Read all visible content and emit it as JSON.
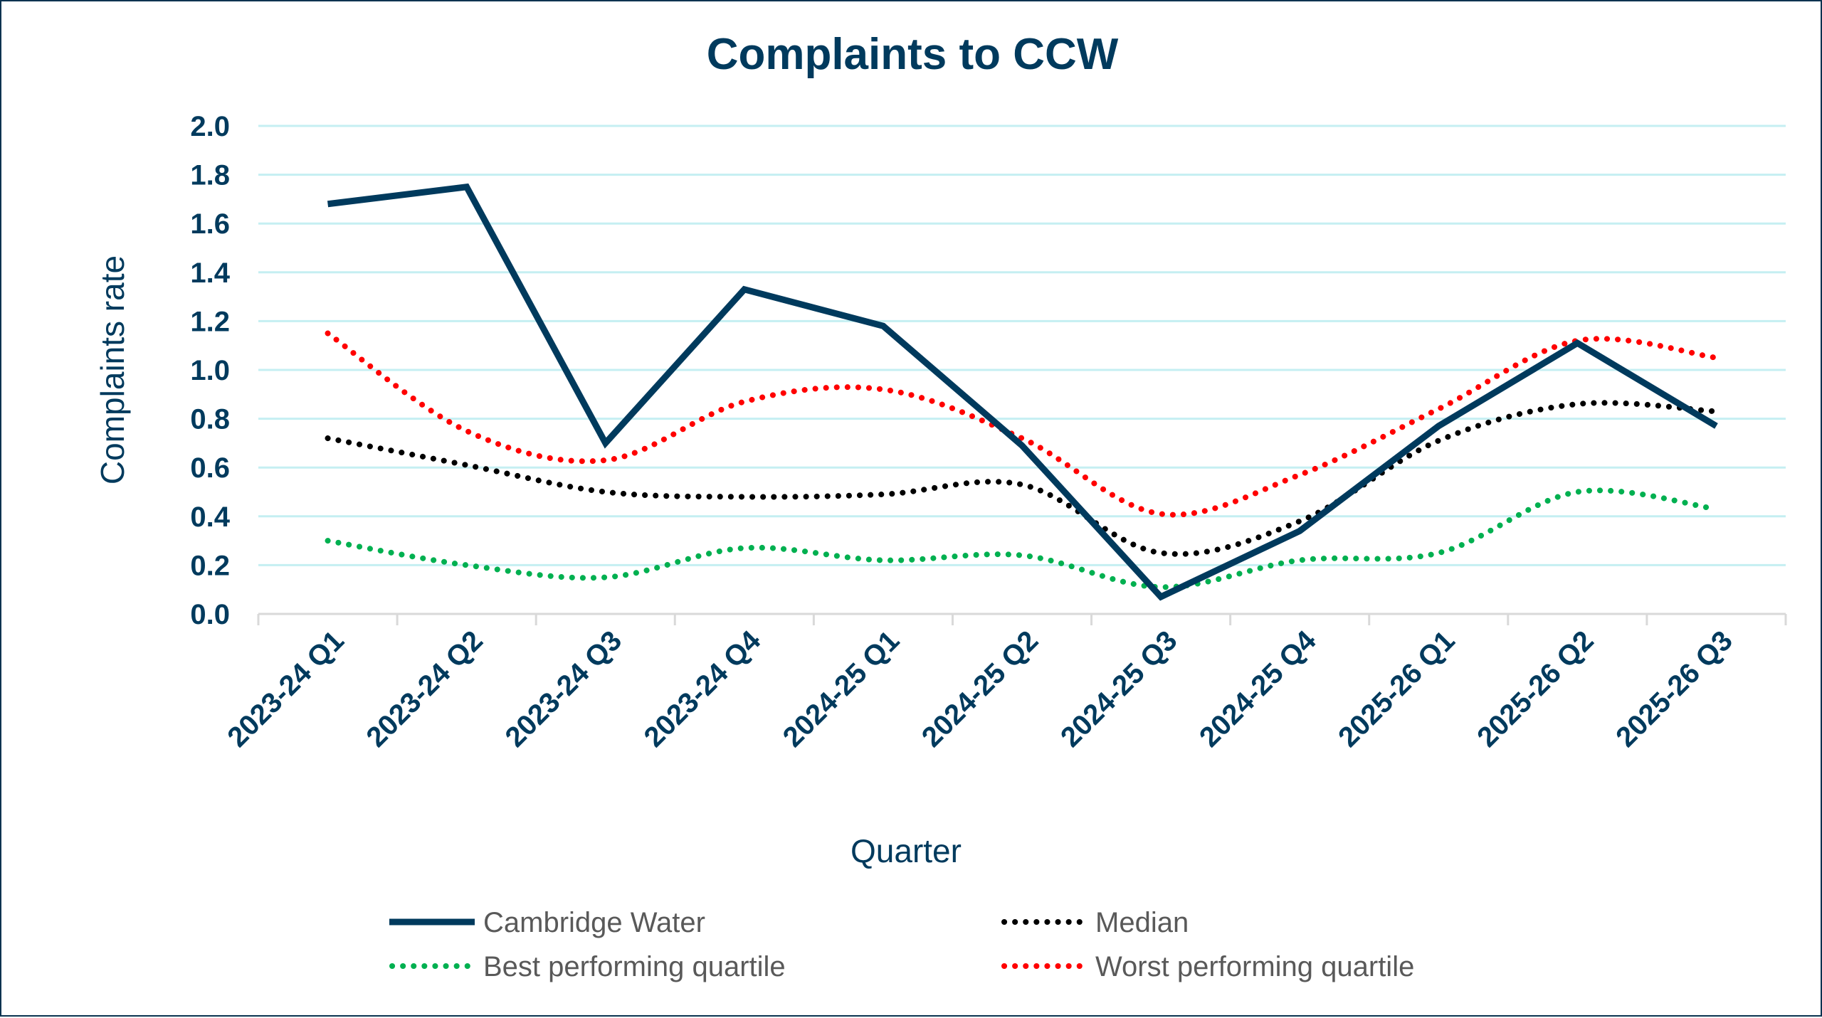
{
  "chart_data": {
    "type": "line",
    "title": "Complaints to CCW",
    "xlabel": "Quarter",
    "ylabel": "Complaints rate",
    "ylim": [
      0,
      2.0
    ],
    "yticks": [
      "0.0",
      "0.2",
      "0.4",
      "0.6",
      "0.8",
      "1.0",
      "1.2",
      "1.4",
      "1.6",
      "1.8",
      "2.0"
    ],
    "grid": true,
    "legend_position": "bottom",
    "categories": [
      "2023-24 Q1",
      "2023-24 Q2",
      "2023-24 Q3",
      "2023-24 Q4",
      "2024-25 Q1",
      "2024-25 Q2",
      "2024-25 Q3",
      "2024-25 Q4",
      "2025-26 Q1",
      "2025-26 Q2",
      "2025-26 Q3"
    ],
    "series": [
      {
        "name": "Cambridge Water",
        "style": "solid",
        "color": "#003a5d",
        "values": [
          1.68,
          1.75,
          0.7,
          1.33,
          1.18,
          0.69,
          0.07,
          0.34,
          0.77,
          1.11,
          0.77
        ]
      },
      {
        "name": "Median",
        "style": "dotted",
        "color": "#000000",
        "values": [
          0.72,
          0.61,
          0.5,
          0.48,
          0.49,
          0.53,
          0.25,
          0.38,
          0.71,
          0.86,
          0.83
        ]
      },
      {
        "name": "Best performing quartile",
        "style": "dotted",
        "color": "#00b050",
        "values": [
          0.3,
          0.2,
          0.15,
          0.27,
          0.22,
          0.24,
          0.11,
          0.22,
          0.25,
          0.5,
          0.43
        ]
      },
      {
        "name": "Worst performing quartile",
        "style": "dotted",
        "color": "#ff0000",
        "values": [
          1.15,
          0.75,
          0.63,
          0.87,
          0.92,
          0.72,
          0.41,
          0.57,
          0.84,
          1.12,
          1.05
        ]
      }
    ],
    "colors": {
      "grid": "#c5eff2",
      "axis": "#d9d9d9",
      "text": "#003a5d",
      "legend_text": "#595959"
    }
  }
}
